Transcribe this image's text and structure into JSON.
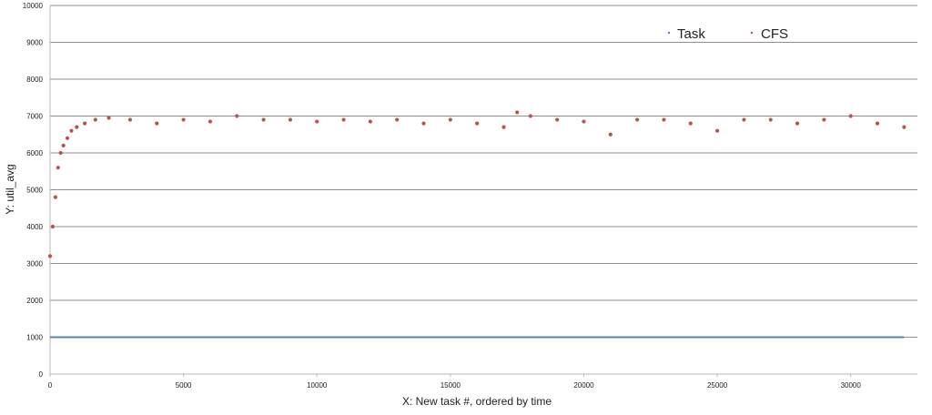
{
  "chart_data": {
    "type": "scatter",
    "title": "",
    "xlabel": "X: New task #, ordered by time",
    "ylabel": "Y: util_avg",
    "xlim": [
      0,
      32500
    ],
    "ylim": [
      0,
      10000
    ],
    "x_ticks": [
      0,
      5000,
      10000,
      15000,
      20000,
      25000,
      30000
    ],
    "y_ticks": [
      0,
      1000,
      2000,
      3000,
      4000,
      5000,
      6000,
      7000,
      8000,
      9000,
      10000
    ],
    "grid": "horizontal",
    "legend_position": "top-right",
    "series": [
      {
        "name": "Task",
        "color": "#4f81bd",
        "marker": "line",
        "x": [
          0,
          32000
        ],
        "y": [
          1000,
          1000
        ]
      },
      {
        "name": "CFS",
        "color": "#c0504d",
        "marker": "dot",
        "x": [
          0,
          100,
          200,
          300,
          400,
          500,
          650,
          800,
          1000,
          1300,
          1700,
          2200,
          3000,
          4000,
          5000,
          6000,
          7000,
          8000,
          9000,
          10000,
          11000,
          12000,
          13000,
          14000,
          15000,
          16000,
          17000,
          17500,
          18000,
          19000,
          20000,
          21000,
          22000,
          23000,
          24000,
          25000,
          26000,
          27000,
          28000,
          29000,
          30000,
          31000,
          32000
        ],
        "y": [
          3200,
          4000,
          4800,
          5600,
          6000,
          6200,
          6400,
          6600,
          6700,
          6800,
          6900,
          6950,
          6900,
          6800,
          6900,
          6850,
          7000,
          6900,
          6900,
          6850,
          6900,
          6850,
          6900,
          6800,
          6900,
          6800,
          6700,
          7100,
          7000,
          6900,
          6850,
          6500,
          6900,
          6900,
          6800,
          6600,
          6900,
          6900,
          6800,
          6900,
          7000,
          6800,
          6700
        ]
      }
    ]
  }
}
